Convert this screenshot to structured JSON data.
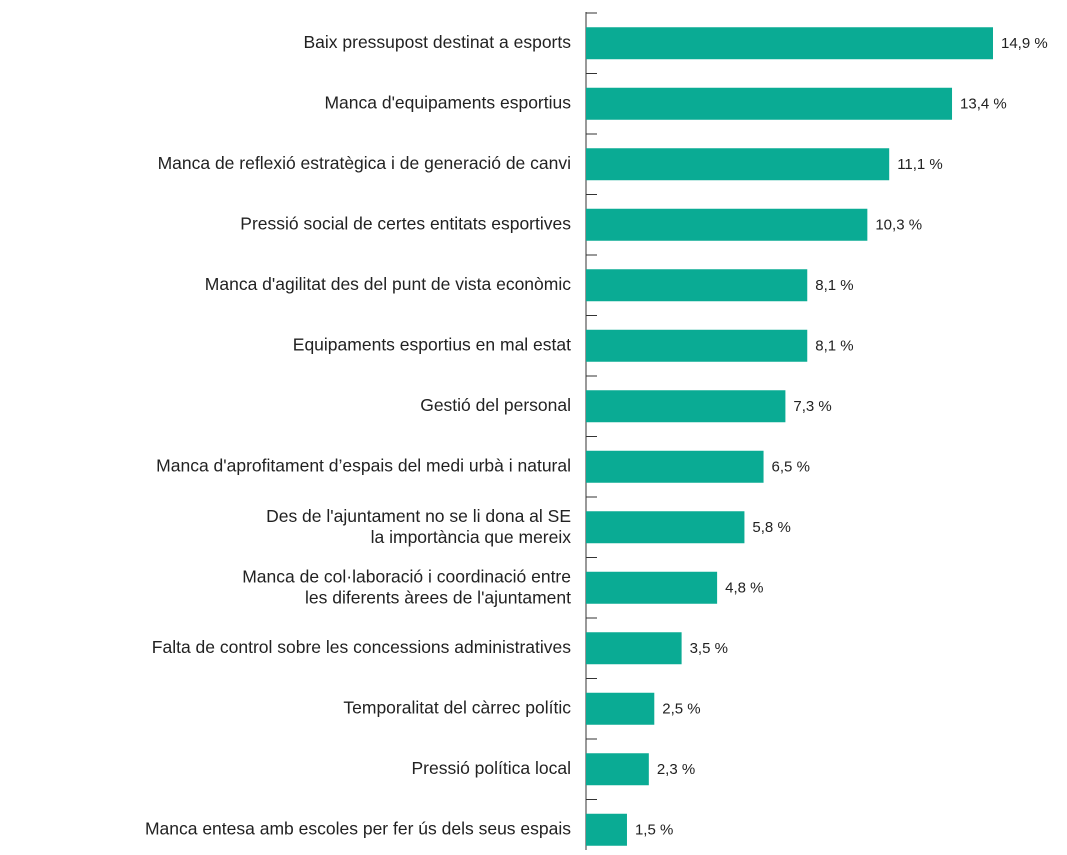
{
  "chart_data": {
    "type": "hbar",
    "color": "#0aab94",
    "categories": [
      "Baix pressupost destinat a esports",
      "Manca d'equipaments esportius",
      "Manca de reflexió estratègica i de generació de canvi",
      "Pressió social de certes entitats esportives",
      "Manca d'agilitat des del punt de vista econòmic",
      "Equipaments esportius en mal estat",
      "Gestió del personal",
      "Manca d'aprofitament d’espais del medi urbà i natural",
      "Des de l'ajuntament no se li dona al SE\nla importància que mereix",
      "Manca de col·laboració i coordinació entre\nles diferents àrees de l'ajuntament",
      "Falta de control sobre les concessions administratives",
      "Temporalitat del càrrec polític",
      "Pressió política local",
      "Manca entesa amb escoles per fer ús dels seus espais"
    ],
    "values": [
      14.9,
      13.4,
      11.1,
      10.3,
      8.1,
      8.1,
      7.3,
      6.5,
      5.8,
      4.8,
      3.5,
      2.5,
      2.3,
      1.5
    ],
    "value_labels": [
      "14,9 %",
      "13,4 %",
      "11,1 %",
      "10,3 %",
      "8,1 %",
      "8,1 %",
      "7,3 %",
      "6,5 %",
      "5,8 %",
      "4,8 %",
      "3,5 %",
      "2,5 %",
      "2,3 %",
      "1,5 %"
    ]
  }
}
